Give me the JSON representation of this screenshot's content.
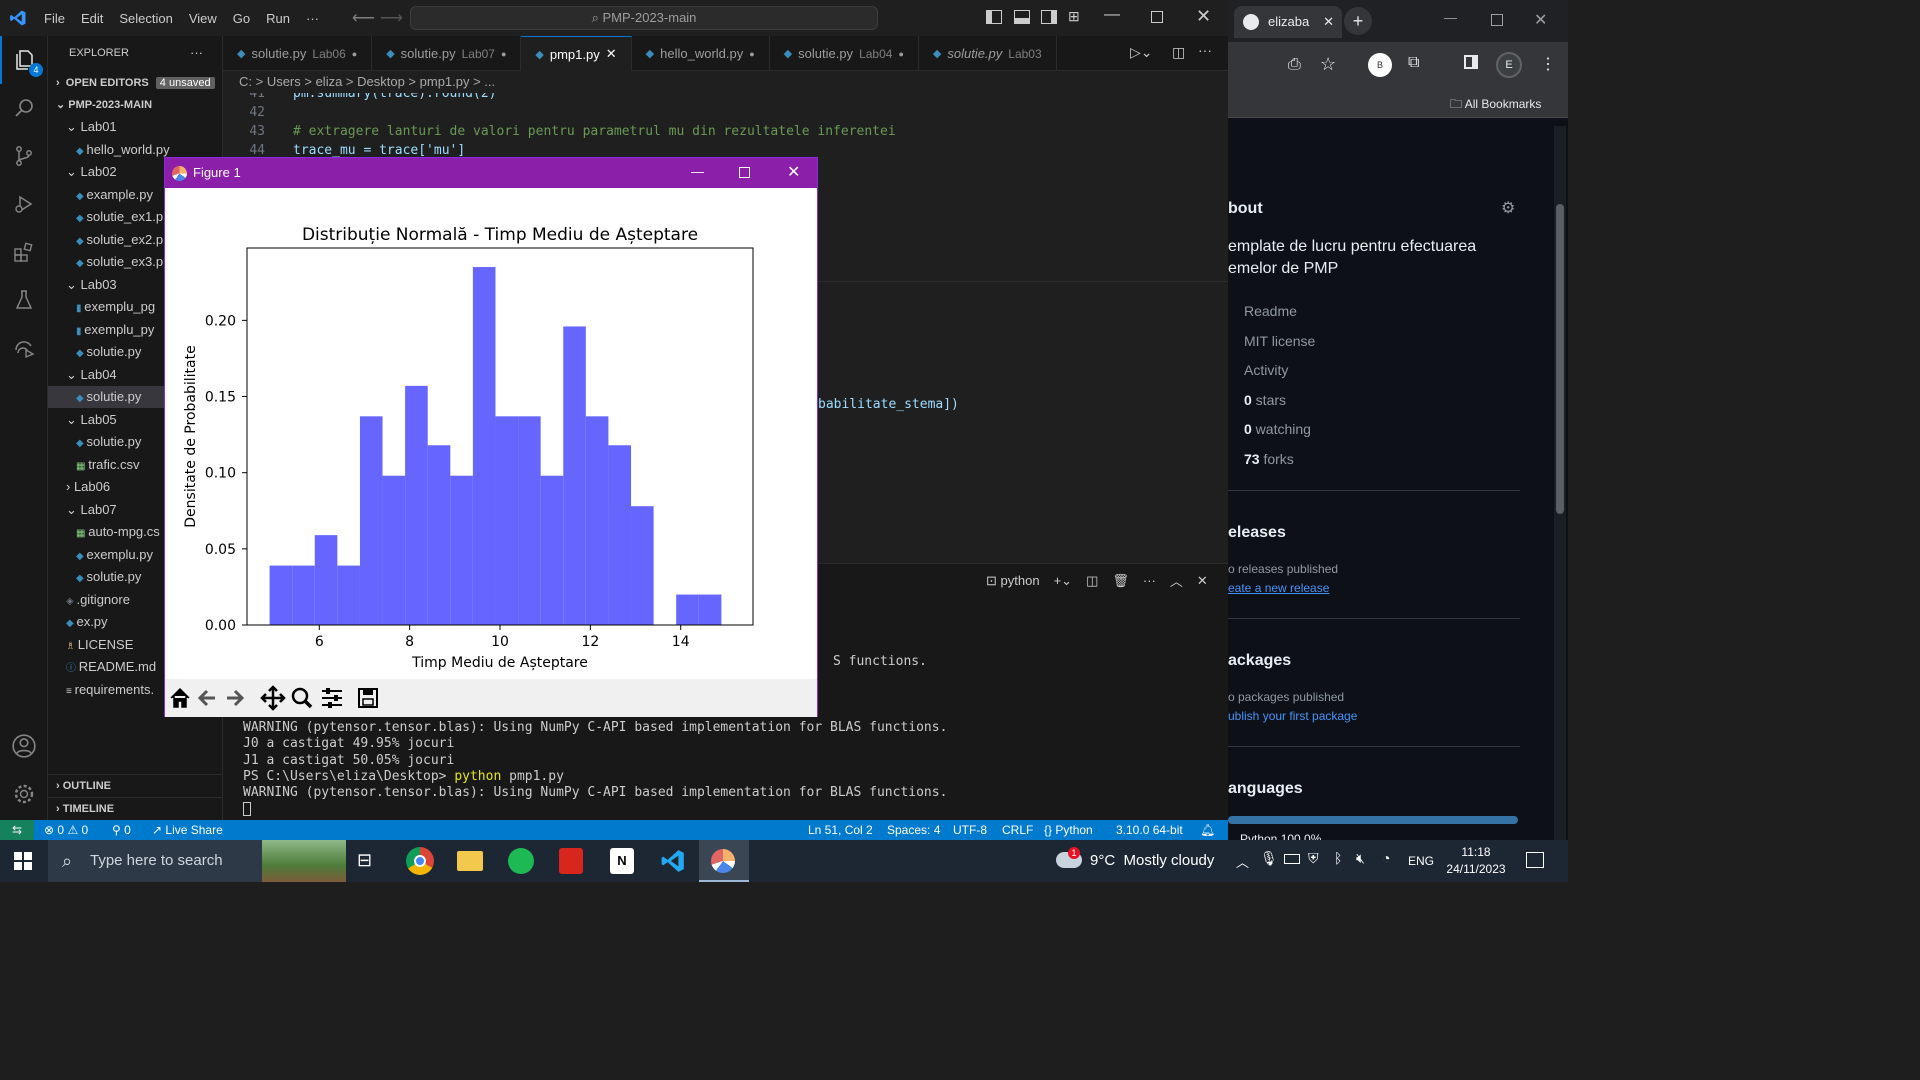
{
  "vscode": {
    "menu": [
      "File",
      "Edit",
      "Selection",
      "View",
      "Go",
      "Run",
      "···"
    ],
    "command_center": "PMP-2023-main",
    "explorer_title": "EXPLORER",
    "open_editors": "OPEN EDITORS",
    "unsaved_badge": "4 unsaved",
    "workspace": "PMP-2023-MAIN",
    "tree": [
      {
        "label": "Lab01",
        "kind": "folder-open",
        "indent": 1
      },
      {
        "label": "hello_world.py",
        "kind": "py",
        "indent": 2
      },
      {
        "label": "Lab02",
        "kind": "folder-open",
        "indent": 1
      },
      {
        "label": "example.py",
        "kind": "py",
        "indent": 2
      },
      {
        "label": "solutie_ex1.p",
        "kind": "py",
        "indent": 2
      },
      {
        "label": "solutie_ex2.p",
        "kind": "py",
        "indent": 2
      },
      {
        "label": "solutie_ex3.p",
        "kind": "py",
        "indent": 2
      },
      {
        "label": "Lab03",
        "kind": "folder-open",
        "indent": 1
      },
      {
        "label": "exemplu_pg",
        "kind": "file",
        "indent": 2
      },
      {
        "label": "exemplu_py",
        "kind": "file",
        "indent": 2
      },
      {
        "label": "solutie.py",
        "kind": "py",
        "indent": 2
      },
      {
        "label": "Lab04",
        "kind": "folder-open",
        "indent": 1
      },
      {
        "label": "solutie.py",
        "kind": "py",
        "indent": 2,
        "selected": true
      },
      {
        "label": "Lab05",
        "kind": "folder-open",
        "indent": 1
      },
      {
        "label": "solutie.py",
        "kind": "py",
        "indent": 2
      },
      {
        "label": "trafic.csv",
        "kind": "csv",
        "indent": 2
      },
      {
        "label": "Lab06",
        "kind": "folder",
        "indent": 1
      },
      {
        "label": "Lab07",
        "kind": "folder-open",
        "indent": 1
      },
      {
        "label": "auto-mpg.cs",
        "kind": "csv",
        "indent": 2
      },
      {
        "label": "exemplu.py",
        "kind": "py",
        "indent": 2
      },
      {
        "label": "solutie.py",
        "kind": "py",
        "indent": 2
      },
      {
        "label": ".gitignore",
        "kind": "git",
        "indent": 1
      },
      {
        "label": "ex.py",
        "kind": "py",
        "indent": 1
      },
      {
        "label": "LICENSE",
        "kind": "license",
        "indent": 1
      },
      {
        "label": "README.md",
        "kind": "info",
        "indent": 1
      },
      {
        "label": "requirements.",
        "kind": "txt",
        "indent": 1
      }
    ],
    "outline": "OUTLINE",
    "timeline": "TIMELINE",
    "tabs": [
      {
        "name": "solutie.py",
        "sub": "Lab06",
        "dirty": true
      },
      {
        "name": "solutie.py",
        "sub": "Lab07",
        "dirty": true
      },
      {
        "name": "pmp1.py",
        "sub": "",
        "active": true
      },
      {
        "name": "hello_world.py",
        "sub": "",
        "dirty": true
      },
      {
        "name": "solutie.py",
        "sub": "Lab04",
        "dirty": true
      },
      {
        "name": "solutie.py",
        "sub": "Lab03",
        "italic": true
      }
    ],
    "breadcrumb": "C: > Users > eliza > Desktop > pmp1.py > ...",
    "code": [
      {
        "n": "41",
        "text": "pm.summary(trace).round(2)"
      },
      {
        "n": "42",
        "text": ""
      },
      {
        "n": "43",
        "text": "# extragere lanturi de valori pentru parametrul mu din rezultatele inferentei",
        "comment": true
      },
      {
        "n": "44",
        "text": "trace_mu = trace['mu']"
      }
    ],
    "code_fragment": "babilitate_stema])",
    "terminal_name": "python",
    "terminal_lines": [
      "WARNING (pytensor.tensor.blas): Using NumPy C-API based implementation for BLAS functions.",
      "J0 a castigat 49.95% jocuri",
      "J1 a castigat 50.05% jocuri",
      "PS C:\\Users\\eliza\\Desktop> python pmp1.py",
      "WARNING (pytensor.tensor.blas): Using NumPy C-API based implementation for BLAS functions."
    ],
    "terminal_fragment": "S functions.",
    "status": {
      "errors": "0",
      "warnings": "0",
      "ports": "0",
      "live_share": "Live Share",
      "position": "Ln 51, Col 2",
      "spaces": "Spaces: 4",
      "encoding": "UTF-8",
      "eol": "CRLF",
      "language": "Python",
      "interpreter": "3.10.0 64-bit"
    }
  },
  "figure": {
    "window_title": "Figure 1"
  },
  "chart_data": {
    "type": "bar",
    "title": "Distribuție Normală - Timp Mediu de Așteptare",
    "xlabel": "Timp Mediu de Așteptare",
    "ylabel": "Densitate de Probabilitate",
    "bin_edges": [
      4.9,
      5.4,
      5.9,
      6.4,
      6.9,
      7.4,
      7.9,
      8.4,
      8.9,
      9.4,
      9.9,
      10.4,
      10.9,
      11.4,
      11.9,
      12.4,
      12.9,
      13.4,
      13.9,
      14.4,
      14.9
    ],
    "values": [
      0.039,
      0.039,
      0.059,
      0.039,
      0.137,
      0.098,
      0.157,
      0.118,
      0.098,
      0.235,
      0.137,
      0.137,
      0.098,
      0.196,
      0.137,
      0.118,
      0.078,
      0.0,
      0.02,
      0.02
    ],
    "xlim": [
      4.4,
      15.6
    ],
    "ylim": [
      0,
      0.2475
    ],
    "xticks": [
      "6",
      "8",
      "10",
      "12",
      "14"
    ],
    "yticks": [
      "0.00",
      "0.05",
      "0.10",
      "0.15",
      "0.20"
    ],
    "bar_color": "#6666ff",
    "grid": false
  },
  "browser": {
    "tab_title": "elizaba",
    "profile_b": "B",
    "profile_e": "E",
    "bookmarks": "All Bookmarks",
    "about": "bout",
    "description_1": "emplate de lucru pentru efectuarea",
    "description_2": "emelor de PMP",
    "links": [
      "Readme",
      "MIT license",
      "Activity",
      "0 stars",
      "0 watching",
      "73 forks"
    ],
    "releases": "eleases",
    "no_releases": "o releases published",
    "create_release": "eate a new release",
    "packages": "ackages",
    "no_packages": "o packages published",
    "publish_package": "ublish your first package",
    "languages": "anguages",
    "lang_fragment": "Python 100.0%"
  },
  "taskbar": {
    "search_placeholder": "Type here to search",
    "weather": "9°C  Mostly cloudy",
    "weather_badge": "1",
    "lang": "ENG",
    "time": "11:18",
    "date": "24/11/2023"
  },
  "colors": {
    "vscode_blue": "#007acc",
    "figure_title": "#8b1fa9",
    "bars": "#6666ff"
  }
}
